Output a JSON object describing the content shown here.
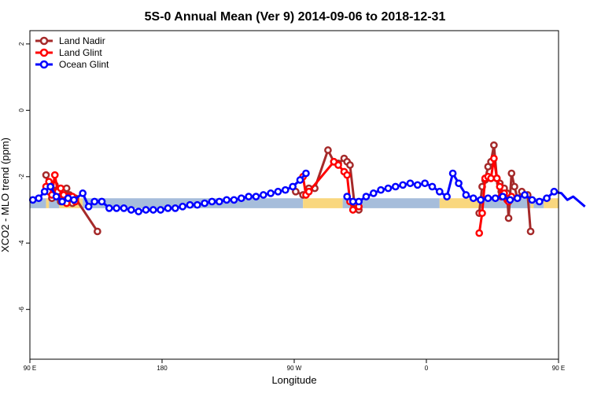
{
  "chart_data": {
    "type": "line",
    "title": "5S-0 Annual Mean (Ver 9)   2014-09-06 to 2018-12-31",
    "xlabel": "Longitude",
    "ylabel": "XCO2 - MLO trend (ppm)",
    "xlim": [
      90,
      450
    ],
    "ylim": [
      -7.5,
      2.4
    ],
    "x_ticks": [
      {
        "value": 90,
        "label": "90 E"
      },
      {
        "value": 180,
        "label": "180"
      },
      {
        "value": 270,
        "label": "90 W"
      },
      {
        "value": 360,
        "label": "0"
      },
      {
        "value": 450,
        "label": "90 E"
      },
      {
        "value": 540,
        "label": "180"
      }
    ],
    "y_ticks": [
      {
        "value": 2,
        "label": "2"
      },
      {
        "value": 0,
        "label": "0"
      },
      {
        "value": -2,
        "label": "-2"
      },
      {
        "value": -4,
        "label": "-4"
      },
      {
        "value": -6,
        "label": "-6"
      }
    ],
    "grid": false,
    "legend_position": "top-left",
    "background_band": {
      "y_range": [
        -2.95,
        -2.65
      ],
      "segments": [
        {
          "x": [
            90,
            101
          ],
          "surface": "ocean",
          "color": "#a6bddb"
        },
        {
          "x": [
            101,
            103
          ],
          "surface": "land",
          "color": "#f9d77e"
        },
        {
          "x": [
            103,
            110
          ],
          "surface": "ocean",
          "color": "#a6bddb"
        },
        {
          "x": [
            110,
            126
          ],
          "surface": "land",
          "color": "#f9d77e"
        },
        {
          "x": [
            126,
            276
          ],
          "surface": "ocean",
          "color": "#a6bddb"
        },
        {
          "x": [
            276,
            303
          ],
          "surface": "land",
          "color": "#f9d77e"
        },
        {
          "x": [
            303,
            369
          ],
          "surface": "ocean",
          "color": "#a6bddb"
        },
        {
          "x": [
            369,
            396
          ],
          "surface": "land",
          "color": "#f9d77e"
        },
        {
          "x": [
            396,
            431
          ],
          "surface": "ocean",
          "color": "#a6bddb"
        },
        {
          "x": [
            431,
            433
          ],
          "surface": "land",
          "color": "#f9d77e"
        },
        {
          "x": [
            433,
            440
          ],
          "surface": "ocean",
          "color": "#a6bddb"
        },
        {
          "x": [
            440,
            456
          ],
          "surface": "land",
          "color": "#f9d77e"
        },
        {
          "x": [
            456,
            606
          ],
          "surface": "ocean",
          "color": "#a6bddb"
        }
      ]
    },
    "series": [
      {
        "name": "Land Nadir",
        "color": "#a52a2a",
        "x": [
          101,
          103,
          105,
          107,
          109,
          111,
          113,
          115,
          117,
          119,
          121,
          136,
          271,
          276,
          280,
          284,
          293,
          297,
          300,
          304,
          306,
          308,
          311,
          314,
          396,
          398,
          400,
          402,
          404,
          406,
          408,
          410,
          411,
          413,
          415,
          416,
          418,
          420,
          422,
          425,
          429,
          431
        ],
        "y": [
          -1.95,
          -2.45,
          -2.65,
          -2.25,
          -2.55,
          -2.75,
          -2.45,
          -2.35,
          -2.55,
          -2.8,
          -2.65,
          -3.65,
          -2.45,
          -2.55,
          -2.35,
          -2.35,
          -1.2,
          -1.55,
          -1.6,
          -1.45,
          -1.55,
          -1.65,
          -2.8,
          -3.0,
          -3.1,
          -2.3,
          -2.1,
          -1.7,
          -1.55,
          -1.05,
          -2.05,
          -2.2,
          -2.45,
          -2.35,
          -2.5,
          -3.25,
          -1.9,
          -2.3,
          -2.65,
          -2.45,
          -2.55,
          -3.65
        ]
      },
      {
        "name": "Land Glint",
        "color": "#ff0000",
        "x": [
          101,
          103,
          105,
          107,
          109,
          111,
          113,
          115,
          117,
          119,
          121,
          276,
          278,
          280,
          297,
          300,
          304,
          306,
          308,
          310,
          314,
          396,
          398,
          400,
          402,
          404,
          406,
          408,
          410,
          411,
          413,
          415,
          416,
          418
        ],
        "y": [
          -2.3,
          -2.15,
          -2.55,
          -1.95,
          -2.45,
          -2.35,
          -2.55,
          -2.8,
          -2.6,
          -2.6,
          -2.75,
          -2.0,
          -2.55,
          -2.45,
          -1.55,
          -1.65,
          -1.85,
          -1.95,
          -2.75,
          -3.0,
          -2.9,
          -3.7,
          -3.1,
          -2.05,
          -2.0,
          -2.05,
          -1.45,
          -2.05,
          -2.3,
          -2.6,
          -2.5,
          -2.7,
          -2.75,
          -2.6
        ]
      },
      {
        "name": "Ocean Glint",
        "color": "#0000ff",
        "x": [
          92,
          96,
          100,
          104,
          108,
          112,
          116,
          120,
          126,
          130,
          134,
          139,
          144,
          149,
          154,
          159,
          164,
          169,
          174,
          179,
          184,
          189,
          194,
          199,
          204,
          209,
          214,
          219,
          224,
          229,
          234,
          239,
          244,
          249,
          254,
          259,
          264,
          269,
          274,
          278,
          306,
          310,
          314,
          319,
          324,
          329,
          334,
          339,
          344,
          349,
          354,
          359,
          364,
          369,
          374,
          378,
          382,
          387,
          392,
          397,
          402,
          407,
          412,
          417,
          422,
          427,
          432,
          437,
          442,
          447,
          452,
          456,
          460,
          464,
          468
        ],
        "y": [
          -2.7,
          -2.65,
          -2.45,
          -2.3,
          -2.6,
          -2.75,
          -2.65,
          -2.7,
          -2.5,
          -2.9,
          -2.75,
          -2.75,
          -2.95,
          -2.95,
          -2.95,
          -3.0,
          -3.05,
          -3.0,
          -3.0,
          -3.0,
          -2.95,
          -2.95,
          -2.9,
          -2.85,
          -2.85,
          -2.8,
          -2.75,
          -2.75,
          -2.7,
          -2.7,
          -2.65,
          -2.6,
          -2.6,
          -2.55,
          -2.5,
          -2.45,
          -2.4,
          -2.3,
          -2.1,
          -1.9,
          -2.6,
          -2.75,
          -2.75,
          -2.6,
          -2.5,
          -2.4,
          -2.35,
          -2.3,
          -2.25,
          -2.2,
          -2.25,
          -2.2,
          -2.3,
          -2.45,
          -2.6,
          -1.9,
          -2.2,
          -2.55,
          -2.65,
          -2.7,
          -2.65,
          -2.65,
          -2.6,
          -2.7,
          -2.65,
          -2.55,
          -2.7,
          -2.75,
          -2.65,
          -2.45,
          -2.5,
          -2.7,
          -2.6,
          -2.75,
          -2.9
        ]
      }
    ]
  }
}
